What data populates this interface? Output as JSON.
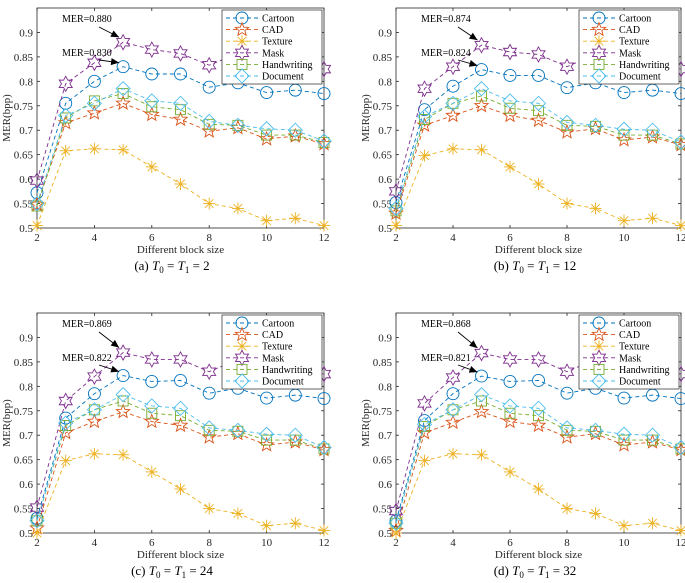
{
  "chart_data": [
    {
      "type": "line",
      "caption": "(a) T0 = T1 = 2",
      "caption_parts": {
        "label": "(a)",
        "var": "T",
        "sub0": "0",
        "sub1": "1",
        "value": "2"
      },
      "xlabel": "Different block size",
      "ylabel": "MER(bpp)",
      "xlim": [
        2,
        12
      ],
      "ylim": [
        0.5,
        0.95
      ],
      "xticks": [
        "2",
        "4",
        "6",
        "8",
        "10",
        "12"
      ],
      "yticks": [
        "0.5",
        "0.55",
        "0.6",
        "0.65",
        "0.7",
        "0.75",
        "0.8",
        "0.85",
        "0.9"
      ],
      "x": [
        2,
        3,
        4,
        5,
        6,
        7,
        8,
        9,
        10,
        11,
        12
      ],
      "series": [
        {
          "name": "Cartoon",
          "values": [
            0.572,
            0.755,
            0.8,
            0.83,
            0.815,
            0.815,
            0.788,
            0.797,
            0.777,
            0.782,
            0.775
          ]
        },
        {
          "name": "CAD",
          "values": [
            0.548,
            0.715,
            0.735,
            0.755,
            0.732,
            0.722,
            0.698,
            0.705,
            0.682,
            0.688,
            0.672
          ]
        },
        {
          "name": "Texture",
          "values": [
            0.505,
            0.658,
            0.662,
            0.66,
            0.625,
            0.59,
            0.55,
            0.54,
            0.515,
            0.52,
            0.505
          ]
        },
        {
          "name": "Mask",
          "values": [
            0.597,
            0.795,
            0.838,
            0.88,
            0.865,
            0.857,
            0.833,
            0.857,
            0.835,
            0.835,
            0.825
          ]
        },
        {
          "name": "Handwriting",
          "values": [
            0.545,
            0.725,
            0.76,
            0.775,
            0.748,
            0.742,
            0.712,
            0.71,
            0.69,
            0.69,
            0.675
          ]
        },
        {
          "name": "Document",
          "values": [
            0.55,
            0.73,
            0.755,
            0.785,
            0.76,
            0.755,
            0.718,
            0.71,
            0.703,
            0.7,
            0.678
          ]
        }
      ],
      "annotations": [
        {
          "text": "MER=0.880",
          "x": 5,
          "y": 0.88
        },
        {
          "text": "MER=0.830",
          "x": 5,
          "y": 0.83
        }
      ]
    },
    {
      "type": "line",
      "caption": "(b) T0 = T1 = 12",
      "caption_parts": {
        "label": "(b)",
        "var": "T",
        "sub0": "0",
        "sub1": "1",
        "value": "12"
      },
      "xlabel": "Different block size",
      "ylabel": "MER(bpp)",
      "xlim": [
        2,
        12
      ],
      "ylim": [
        0.5,
        0.95
      ],
      "xticks": [
        "2",
        "4",
        "6",
        "8",
        "10",
        "12"
      ],
      "yticks": [
        "0.5",
        "0.55",
        "0.6",
        "0.65",
        "0.7",
        "0.75",
        "0.8",
        "0.85",
        "0.9"
      ],
      "x": [
        2,
        3,
        4,
        5,
        6,
        7,
        8,
        9,
        10,
        11,
        12
      ],
      "series": [
        {
          "name": "Cartoon",
          "values": [
            0.552,
            0.742,
            0.79,
            0.824,
            0.812,
            0.812,
            0.787,
            0.797,
            0.777,
            0.782,
            0.775
          ]
        },
        {
          "name": "CAD",
          "values": [
            0.53,
            0.71,
            0.73,
            0.75,
            0.73,
            0.72,
            0.696,
            0.703,
            0.68,
            0.686,
            0.67
          ]
        },
        {
          "name": "Texture",
          "values": [
            0.505,
            0.648,
            0.662,
            0.66,
            0.625,
            0.59,
            0.55,
            0.54,
            0.515,
            0.52,
            0.505
          ]
        },
        {
          "name": "Mask",
          "values": [
            0.575,
            0.785,
            0.83,
            0.874,
            0.86,
            0.855,
            0.83,
            0.855,
            0.83,
            0.835,
            0.825
          ]
        },
        {
          "name": "Handwriting",
          "values": [
            0.535,
            0.722,
            0.755,
            0.77,
            0.745,
            0.74,
            0.71,
            0.708,
            0.69,
            0.69,
            0.672
          ]
        },
        {
          "name": "Document",
          "values": [
            0.54,
            0.728,
            0.755,
            0.785,
            0.76,
            0.755,
            0.716,
            0.71,
            0.702,
            0.7,
            0.676
          ]
        }
      ],
      "annotations": [
        {
          "text": "MER=0.874",
          "x": 5,
          "y": 0.874
        },
        {
          "text": "MER=0.824",
          "x": 5,
          "y": 0.824
        }
      ]
    },
    {
      "type": "line",
      "caption": "(c) T0 = T1 = 24",
      "caption_parts": {
        "label": "(c)",
        "var": "T",
        "sub0": "0",
        "sub1": "1",
        "value": "24"
      },
      "xlabel": "Different block size",
      "ylabel": "MER(bpp)",
      "xlim": [
        2,
        12
      ],
      "ylim": [
        0.5,
        0.95
      ],
      "xticks": [
        "2",
        "4",
        "6",
        "8",
        "10",
        "12"
      ],
      "yticks": [
        "0.5",
        "0.55",
        "0.6",
        "0.65",
        "0.7",
        "0.75",
        "0.8",
        "0.85",
        "0.9"
      ],
      "x": [
        2,
        3,
        4,
        5,
        6,
        7,
        8,
        9,
        10,
        11,
        12
      ],
      "series": [
        {
          "name": "Cartoon",
          "values": [
            0.53,
            0.735,
            0.785,
            0.822,
            0.81,
            0.812,
            0.786,
            0.796,
            0.776,
            0.782,
            0.775
          ]
        },
        {
          "name": "CAD",
          "values": [
            0.51,
            0.705,
            0.728,
            0.748,
            0.728,
            0.72,
            0.696,
            0.703,
            0.68,
            0.686,
            0.67
          ]
        },
        {
          "name": "Texture",
          "values": [
            0.5,
            0.648,
            0.662,
            0.66,
            0.625,
            0.59,
            0.55,
            0.54,
            0.515,
            0.52,
            0.505
          ]
        },
        {
          "name": "Mask",
          "values": [
            0.552,
            0.77,
            0.82,
            0.869,
            0.855,
            0.855,
            0.83,
            0.855,
            0.83,
            0.835,
            0.825
          ]
        },
        {
          "name": "Handwriting",
          "values": [
            0.525,
            0.72,
            0.752,
            0.77,
            0.745,
            0.74,
            0.71,
            0.708,
            0.69,
            0.69,
            0.672
          ]
        },
        {
          "name": "Document",
          "values": [
            0.525,
            0.725,
            0.752,
            0.783,
            0.76,
            0.755,
            0.715,
            0.71,
            0.702,
            0.7,
            0.675
          ]
        }
      ],
      "annotations": [
        {
          "text": "MER=0.869",
          "x": 5,
          "y": 0.869
        },
        {
          "text": "MER=0.822",
          "x": 5,
          "y": 0.822
        }
      ]
    },
    {
      "type": "line",
      "caption": "(d) T0 = T1 = 32",
      "caption_parts": {
        "label": "(d)",
        "var": "T",
        "sub0": "0",
        "sub1": "1",
        "value": "32"
      },
      "xlabel": "Different block size",
      "ylabel": "MER(bpp)",
      "xlim": [
        2,
        12
      ],
      "ylim": [
        0.5,
        0.95
      ],
      "xticks": [
        "2",
        "4",
        "6",
        "8",
        "10",
        "12"
      ],
      "yticks": [
        "0.5",
        "0.55",
        "0.6",
        "0.65",
        "0.7",
        "0.75",
        "0.8",
        "0.85",
        "0.9"
      ],
      "x": [
        2,
        3,
        4,
        5,
        6,
        7,
        8,
        9,
        10,
        11,
        12
      ],
      "series": [
        {
          "name": "Cartoon",
          "values": [
            0.525,
            0.73,
            0.785,
            0.821,
            0.81,
            0.812,
            0.786,
            0.796,
            0.776,
            0.782,
            0.775
          ]
        },
        {
          "name": "CAD",
          "values": [
            0.505,
            0.705,
            0.726,
            0.748,
            0.728,
            0.72,
            0.696,
            0.703,
            0.68,
            0.686,
            0.67
          ]
        },
        {
          "name": "Texture",
          "values": [
            0.5,
            0.648,
            0.662,
            0.66,
            0.625,
            0.59,
            0.55,
            0.54,
            0.515,
            0.52,
            0.505
          ]
        },
        {
          "name": "Mask",
          "values": [
            0.545,
            0.765,
            0.818,
            0.868,
            0.855,
            0.855,
            0.83,
            0.855,
            0.83,
            0.835,
            0.825
          ]
        },
        {
          "name": "Handwriting",
          "values": [
            0.52,
            0.718,
            0.752,
            0.77,
            0.745,
            0.74,
            0.71,
            0.708,
            0.69,
            0.69,
            0.672
          ]
        },
        {
          "name": "Document",
          "values": [
            0.52,
            0.722,
            0.752,
            0.783,
            0.76,
            0.755,
            0.715,
            0.71,
            0.702,
            0.7,
            0.675
          ]
        }
      ],
      "annotations": [
        {
          "text": "MER=0.868",
          "x": 5,
          "y": 0.868
        },
        {
          "text": "MER=0.821",
          "x": 5,
          "y": 0.821
        }
      ]
    }
  ],
  "series_styles": {
    "Cartoon": {
      "color": "#0072bd",
      "marker": "circle-marker-icon"
    },
    "CAD": {
      "color": "#d95319",
      "marker": "star-marker-icon"
    },
    "Texture": {
      "color": "#edb120",
      "marker": "asterisk-marker-icon"
    },
    "Mask": {
      "color": "#7e2f8e",
      "marker": "hexagram-marker-icon"
    },
    "Handwriting": {
      "color": "#77ac30",
      "marker": "square-marker-icon"
    },
    "Document": {
      "color": "#4dbeee",
      "marker": "diamond-marker-icon"
    }
  }
}
